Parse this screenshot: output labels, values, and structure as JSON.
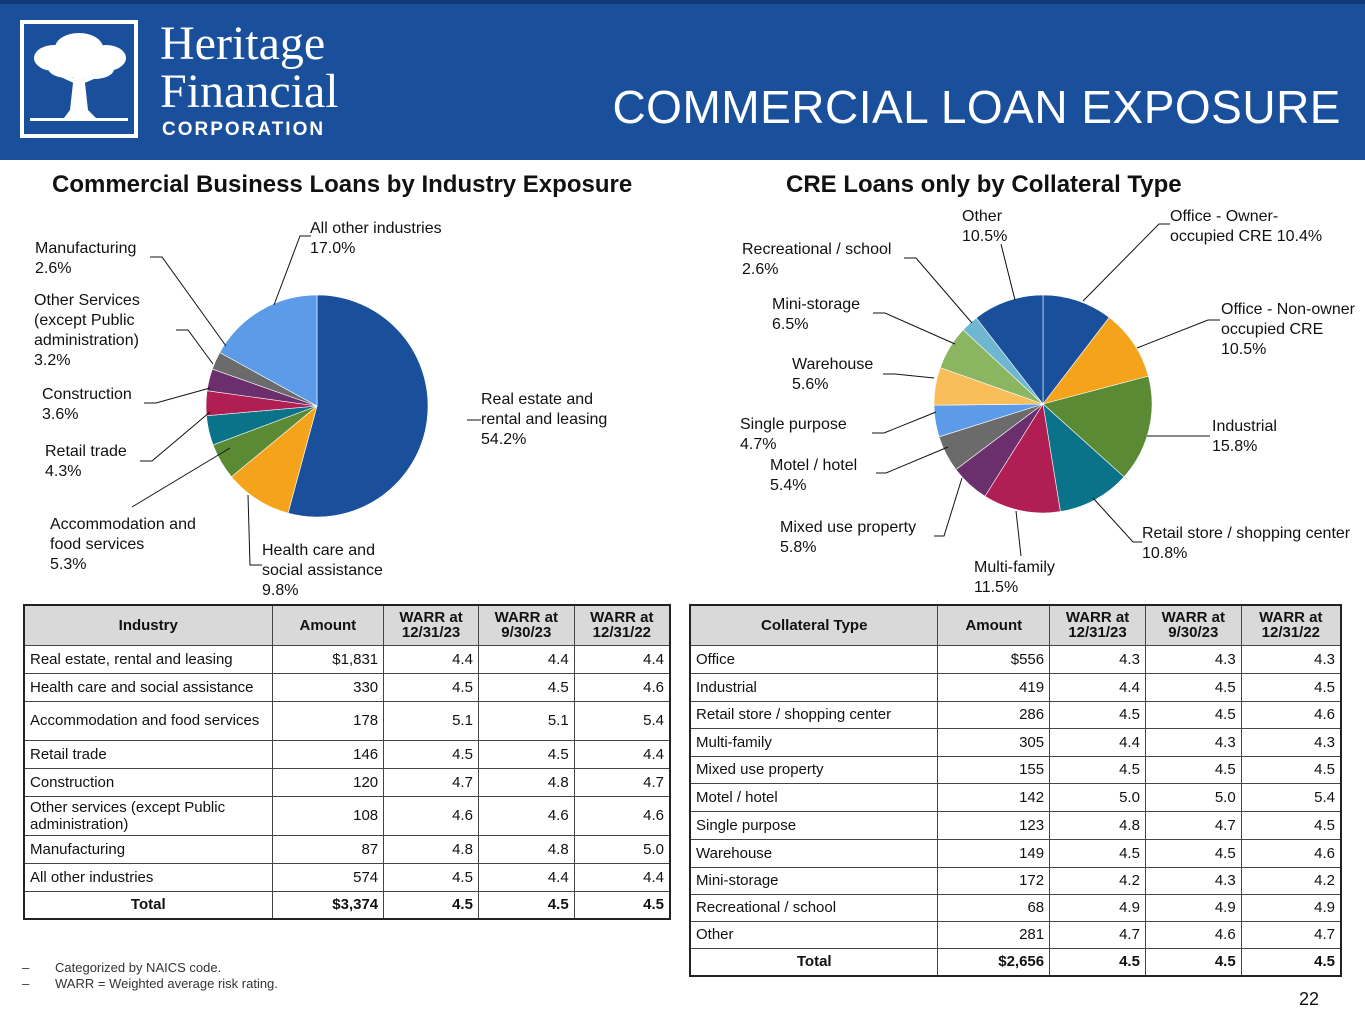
{
  "brand": {
    "name_line1": "Heritage",
    "name_line2": "Financial",
    "name_line3": "CORPORATION"
  },
  "page_title": "COMMERCIAL LOAN EXPOSURE",
  "page_number": "22",
  "colors": {
    "header_bg": "#1a4f9b",
    "pie_palette": [
      "#1a4f9b",
      "#f5a31a",
      "#5b8a35",
      "#0b7389",
      "#b01e54",
      "#6b2f6e",
      "#6b6b6b",
      "#5b9be8",
      "#f9bd5a",
      "#8bb561",
      "#6fb6d0"
    ]
  },
  "chart_data": [
    {
      "type": "pie",
      "title": "Commercial Business Loans by Industry Exposure",
      "slices": [
        {
          "label": "Real estate and rental and leasing",
          "label_lines": [
            "Real estate and",
            "rental and leasing"
          ],
          "value": 54.2,
          "display": "54.2%",
          "color": "#1a4f9b"
        },
        {
          "label": "Health care and social assistance",
          "label_lines": [
            "Health care and",
            "social assistance"
          ],
          "value": 9.8,
          "display": "9.8%",
          "color": "#f5a31a"
        },
        {
          "label": "Accommodation and food services",
          "label_lines": [
            "Accommodation and",
            "food services"
          ],
          "value": 5.3,
          "display": "5.3%",
          "color": "#5b8a35"
        },
        {
          "label": "Retail trade",
          "label_lines": [
            "Retail trade"
          ],
          "value": 4.3,
          "display": "4.3%",
          "color": "#0b7389"
        },
        {
          "label": "Construction",
          "label_lines": [
            "Construction"
          ],
          "value": 3.6,
          "display": "3.6%",
          "color": "#b01e54"
        },
        {
          "label": "Other Services (except Public administration)",
          "label_lines": [
            "Other Services",
            "(except Public",
            "administration)"
          ],
          "value": 3.2,
          "display": "3.2%",
          "color": "#6b2f6e"
        },
        {
          "label": "Manufacturing",
          "label_lines": [
            "Manufacturing"
          ],
          "value": 2.6,
          "display": "2.6%",
          "color": "#6b6b6b"
        },
        {
          "label": "All other industries",
          "label_lines": [
            "All other industries"
          ],
          "value": 17.0,
          "display": "17.0%",
          "color": "#5b9be8"
        }
      ]
    },
    {
      "type": "pie",
      "title": "CRE Loans only by Collateral Type",
      "slices": [
        {
          "label": "Office - Owner-occupied CRE",
          "label_lines": [
            "Office - Owner-",
            "occupied CRE 10.4%"
          ],
          "value": 10.4,
          "display": "",
          "color": "#1a4f9b"
        },
        {
          "label": "Office - Non-owner occupied CRE",
          "label_lines": [
            "Office - Non-owner",
            "occupied CRE"
          ],
          "value": 10.5,
          "display": "10.5%",
          "color": "#f5a31a"
        },
        {
          "label": "Industrial",
          "label_lines": [
            "Industrial"
          ],
          "value": 15.8,
          "display": "15.8%",
          "color": "#5b8a35"
        },
        {
          "label": "Retail store / shopping center",
          "label_lines": [
            "Retail store / shopping center"
          ],
          "value": 10.8,
          "display": "10.8%",
          "color": "#0b7389"
        },
        {
          "label": "Multi-family",
          "label_lines": [
            "Multi-family"
          ],
          "value": 11.5,
          "display": "11.5%",
          "color": "#b01e54"
        },
        {
          "label": "Mixed use property",
          "label_lines": [
            "Mixed use property"
          ],
          "value": 5.8,
          "display": "5.8%",
          "color": "#6b2f6e"
        },
        {
          "label": "Motel / hotel",
          "label_lines": [
            "Motel / hotel"
          ],
          "value": 5.4,
          "display": "5.4%",
          "color": "#6b6b6b"
        },
        {
          "label": "Single purpose",
          "label_lines": [
            "Single purpose"
          ],
          "value": 4.7,
          "display": "4.7%",
          "color": "#5b9be8"
        },
        {
          "label": "Warehouse",
          "label_lines": [
            "Warehouse"
          ],
          "value": 5.6,
          "display": "5.6%",
          "color": "#f9bd5a"
        },
        {
          "label": "Mini-storage",
          "label_lines": [
            "Mini-storage"
          ],
          "value": 6.5,
          "display": "6.5%",
          "color": "#8bb561"
        },
        {
          "label": "Recreational / school",
          "label_lines": [
            "Recreational / school"
          ],
          "value": 2.6,
          "display": "2.6%",
          "color": "#6fb6d0"
        },
        {
          "label": "Other",
          "label_lines": [
            "Other"
          ],
          "value": 10.5,
          "display": "10.5%",
          "color": "#1a4f9b"
        }
      ]
    }
  ],
  "industry_table": {
    "headers": [
      "Industry",
      "Amount",
      "WARR at 12/31/23",
      "WARR at 9/30/23",
      "WARR at 12/31/22"
    ],
    "rows": [
      [
        "Real estate, rental and leasing",
        "$1,831",
        "4.4",
        "4.4",
        "4.4"
      ],
      [
        "Health care and social assistance",
        "330",
        "4.5",
        "4.5",
        "4.6"
      ],
      [
        "Accommodation and food services",
        "178",
        "5.1",
        "5.1",
        "5.4"
      ],
      [
        "Retail trade",
        "146",
        "4.5",
        "4.5",
        "4.4"
      ],
      [
        "Construction",
        "120",
        "4.7",
        "4.8",
        "4.7"
      ],
      [
        "Other services (except Public administration)",
        "108",
        "4.6",
        "4.6",
        "4.6"
      ],
      [
        "Manufacturing",
        "87",
        "4.8",
        "4.8",
        "5.0"
      ],
      [
        "All other industries",
        "574",
        "4.5",
        "4.4",
        "4.4"
      ]
    ],
    "total": [
      "Total",
      "$3,374",
      "4.5",
      "4.5",
      "4.5"
    ]
  },
  "collateral_table": {
    "headers": [
      "Collateral Type",
      "Amount",
      "WARR at 12/31/23",
      "WARR at 9/30/23",
      "WARR at 12/31/22"
    ],
    "rows": [
      [
        "Office",
        "$556",
        "4.3",
        "4.3",
        "4.3"
      ],
      [
        "Industrial",
        "419",
        "4.4",
        "4.5",
        "4.5"
      ],
      [
        "Retail store / shopping center",
        "286",
        "4.5",
        "4.5",
        "4.6"
      ],
      [
        "Multi-family",
        "305",
        "4.4",
        "4.3",
        "4.3"
      ],
      [
        "Mixed use property",
        "155",
        "4.5",
        "4.5",
        "4.5"
      ],
      [
        "Motel / hotel",
        "142",
        "5.0",
        "5.0",
        "5.4"
      ],
      [
        "Single purpose",
        "123",
        "4.8",
        "4.7",
        "4.5"
      ],
      [
        "Warehouse",
        "149",
        "4.5",
        "4.5",
        "4.6"
      ],
      [
        "Mini-storage",
        "172",
        "4.2",
        "4.3",
        "4.2"
      ],
      [
        "Recreational / school",
        "68",
        "4.9",
        "4.9",
        "4.9"
      ],
      [
        "Other",
        "281",
        "4.7",
        "4.6",
        "4.7"
      ]
    ],
    "total": [
      "Total",
      "$2,656",
      "4.5",
      "4.5",
      "4.5"
    ]
  },
  "footnotes": [
    {
      "dash": "–",
      "text": "Categorized by NAICS code."
    },
    {
      "dash": "–",
      "text": "WARR = Weighted average risk rating."
    }
  ]
}
